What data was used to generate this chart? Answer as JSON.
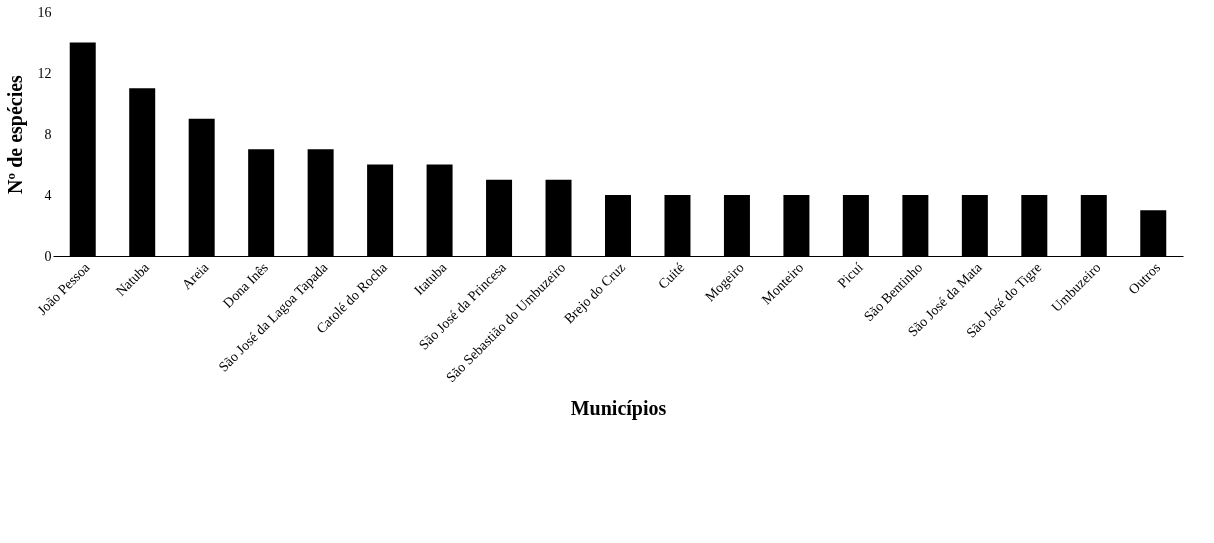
{
  "chart_data": {
    "type": "bar",
    "xlabel": "Municípios",
    "ylabel": "Nº de espécies",
    "categories": [
      "João Pessoa",
      "Natuba",
      "Areia",
      "Dona Inês",
      "São José da Lagoa Tapada",
      "Catolé do Rocha",
      "Itatuba",
      "São José da Princesa",
      "São Sebastião do Umbuzeiro",
      "Brejo do Cruz",
      "Cuité",
      "Mogeiro",
      "Monteiro",
      "Picuí",
      "São Bentinho",
      "São José da Mata",
      "São José do Tigre",
      "Umbuzeiro",
      "Outros"
    ],
    "values": [
      14,
      11,
      9,
      7,
      7,
      6,
      6,
      5,
      5,
      4,
      4,
      4,
      4,
      4,
      4,
      4,
      4,
      4,
      3
    ],
    "color": "#000000",
    "ylim": [
      0,
      16
    ],
    "yticks": [
      0,
      4,
      8,
      12,
      16
    ],
    "grid": false
  }
}
